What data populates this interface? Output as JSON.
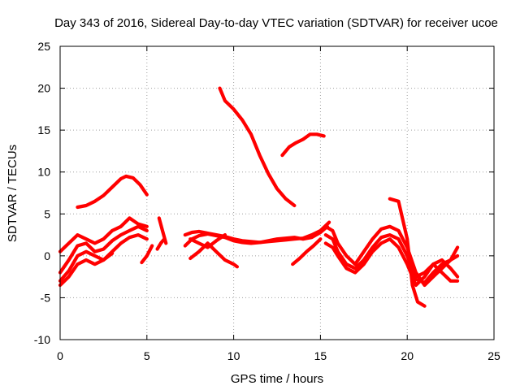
{
  "chart_data": {
    "type": "scatter",
    "title": "Day 343 of 2016, Sidereal Day-to-day VTEC variation (SDTVAR) for receiver ucoe",
    "xlabel": "GPS time / hours",
    "ylabel": "SDTVAR / TECUs",
    "xlim": [
      0,
      25
    ],
    "ylim": [
      -10,
      25
    ],
    "xticks": [
      0,
      5,
      10,
      15,
      20,
      25
    ],
    "yticks": [
      -10,
      -5,
      0,
      5,
      10,
      15,
      20,
      25
    ],
    "grid": true,
    "color": "#ff0000",
    "series": [
      {
        "name": "arc-upper-hump",
        "x": [
          1.0,
          1.5,
          2.0,
          2.5,
          3.0,
          3.5,
          3.8,
          4.2,
          4.6,
          5.0
        ],
        "y": [
          5.8,
          6.0,
          6.5,
          7.2,
          8.2,
          9.2,
          9.5,
          9.3,
          8.5,
          7.3
        ]
      },
      {
        "name": "arc-descending-long",
        "x": [
          9.2,
          9.5,
          10.0,
          10.5,
          11.0,
          11.5,
          12.0,
          12.5,
          13.0,
          13.5
        ],
        "y": [
          20.0,
          18.5,
          17.5,
          16.2,
          14.5,
          12.0,
          9.8,
          8.0,
          6.8,
          6.0
        ]
      },
      {
        "name": "arc-upper-right",
        "x": [
          12.8,
          13.2,
          13.6,
          14.0,
          14.4,
          14.8,
          15.2
        ],
        "y": [
          12.0,
          13.0,
          13.5,
          13.9,
          14.5,
          14.5,
          14.3
        ]
      },
      {
        "name": "arc-a1",
        "x": [
          0.0,
          0.5,
          1.0,
          1.5,
          2.0,
          2.5,
          3.0,
          3.5,
          4.0,
          4.5,
          5.0
        ],
        "y": [
          0.5,
          1.5,
          2.5,
          2.0,
          1.5,
          2.0,
          3.0,
          3.5,
          4.5,
          3.8,
          3.5
        ]
      },
      {
        "name": "arc-a2",
        "x": [
          0.0,
          0.5,
          1.0,
          1.5,
          2.0,
          2.5,
          3.0,
          3.5,
          4.0,
          4.5,
          5.0
        ],
        "y": [
          -2.0,
          -0.5,
          1.2,
          1.5,
          0.5,
          0.8,
          1.8,
          2.5,
          3.0,
          3.5,
          3.0
        ]
      },
      {
        "name": "arc-a3",
        "x": [
          0.0,
          0.5,
          1.0,
          1.5,
          2.0,
          2.5,
          3.0,
          3.5,
          4.0,
          4.5,
          5.0
        ],
        "y": [
          -3.0,
          -1.8,
          0.0,
          0.5,
          0.0,
          -0.5,
          0.5,
          1.5,
          2.2,
          2.5,
          2.0
        ]
      },
      {
        "name": "arc-a4",
        "x": [
          0.0,
          0.5,
          1.0,
          1.5,
          2.0,
          2.5,
          3.0
        ],
        "y": [
          -3.5,
          -2.5,
          -1.0,
          -0.5,
          -1.0,
          -0.5,
          0.3
        ]
      },
      {
        "name": "seg-b1",
        "x": [
          4.7,
          5.0,
          5.3
        ],
        "y": [
          -0.8,
          0.0,
          1.2
        ]
      },
      {
        "name": "seg-b2",
        "x": [
          5.7,
          5.9,
          6.1
        ],
        "y": [
          4.5,
          3.0,
          1.5
        ]
      },
      {
        "name": "seg-b3",
        "x": [
          5.6,
          5.8,
          6.0
        ],
        "y": [
          0.8,
          1.5,
          2.0
        ]
      },
      {
        "name": "arc-c1",
        "x": [
          7.2,
          7.6,
          8.0,
          8.5,
          9.0,
          9.5,
          10.0,
          10.5,
          11.0,
          11.5,
          12.0,
          12.5,
          13.0,
          13.5,
          14.0,
          14.5,
          15.0,
          15.5
        ],
        "y": [
          1.2,
          2.0,
          2.4,
          2.6,
          2.4,
          2.2,
          1.8,
          1.6,
          1.5,
          1.6,
          1.7,
          1.8,
          1.9,
          2.0,
          2.1,
          2.5,
          3.0,
          4.0
        ]
      },
      {
        "name": "arc-c2",
        "x": [
          7.2,
          7.6,
          8.0,
          8.5,
          9.0,
          9.5,
          10.0,
          10.5,
          11.0,
          11.5,
          12.0,
          12.5,
          13.0,
          13.5,
          14.0,
          14.5,
          15.0,
          15.4
        ],
        "y": [
          2.5,
          2.8,
          2.9,
          2.7,
          2.5,
          2.3,
          2.0,
          1.8,
          1.7,
          1.6,
          1.8,
          2.0,
          2.1,
          2.2,
          2.0,
          2.2,
          2.8,
          3.5
        ]
      },
      {
        "name": "arc-c3",
        "x": [
          7.5,
          8.0,
          8.5,
          9.0,
          9.5,
          10.0,
          10.2
        ],
        "y": [
          -0.3,
          0.5,
          1.5,
          0.5,
          -0.5,
          -1.0,
          -1.3
        ]
      },
      {
        "name": "arc-c4",
        "x": [
          7.5,
          8.0,
          8.5,
          9.0,
          9.5
        ],
        "y": [
          2.0,
          1.5,
          1.0,
          1.8,
          2.5
        ]
      },
      {
        "name": "seg-c5",
        "x": [
          13.4,
          13.8,
          14.2,
          14.6,
          15.0
        ],
        "y": [
          -1.0,
          -0.3,
          0.5,
          1.2,
          2.0
        ]
      },
      {
        "name": "arc-d1",
        "x": [
          15.3,
          15.7,
          16.0,
          16.5,
          17.0,
          17.5,
          18.0,
          18.5,
          19.0,
          19.5,
          20.0,
          20.5,
          21.0,
          21.5,
          22.0,
          22.5,
          22.9
        ],
        "y": [
          3.5,
          3.0,
          1.5,
          0.0,
          -1.0,
          0.5,
          2.0,
          3.2,
          3.5,
          3.0,
          1.0,
          -2.0,
          -3.5,
          -2.5,
          -1.5,
          -0.5,
          1.0
        ]
      },
      {
        "name": "arc-d2",
        "x": [
          15.3,
          15.7,
          16.0,
          16.5,
          17.0,
          17.5,
          18.0,
          18.5,
          19.0,
          19.5,
          20.0,
          20.5,
          21.0,
          21.5,
          22.0,
          22.5,
          22.9
        ],
        "y": [
          2.5,
          2.0,
          0.5,
          -1.0,
          -1.5,
          -0.5,
          1.0,
          2.2,
          2.5,
          2.0,
          0.0,
          -2.8,
          -3.2,
          -2.0,
          -1.0,
          -0.5,
          0.0
        ]
      },
      {
        "name": "arc-d3",
        "x": [
          15.3,
          15.7,
          16.0,
          16.5,
          17.0,
          17.5,
          18.0,
          18.5,
          19.0,
          19.5,
          20.0,
          20.5,
          21.0,
          21.5,
          22.0,
          22.5,
          22.9
        ],
        "y": [
          1.5,
          1.0,
          0.0,
          -1.5,
          -2.0,
          -1.0,
          0.5,
          1.5,
          2.0,
          1.0,
          -1.0,
          -3.5,
          -2.5,
          -1.0,
          -0.5,
          -1.5,
          -2.5
        ]
      },
      {
        "name": "arc-d4",
        "x": [
          19.0,
          19.5,
          20.0,
          20.3,
          20.6,
          21.0
        ],
        "y": [
          6.8,
          6.5,
          2.0,
          -3.5,
          -5.5,
          -6.0
        ]
      },
      {
        "name": "arc-d5",
        "x": [
          20.5,
          21.0,
          21.5,
          22.0,
          22.5,
          22.9
        ],
        "y": [
          -2.5,
          -2.0,
          -1.0,
          -2.0,
          -3.0,
          -3.0
        ]
      }
    ]
  }
}
